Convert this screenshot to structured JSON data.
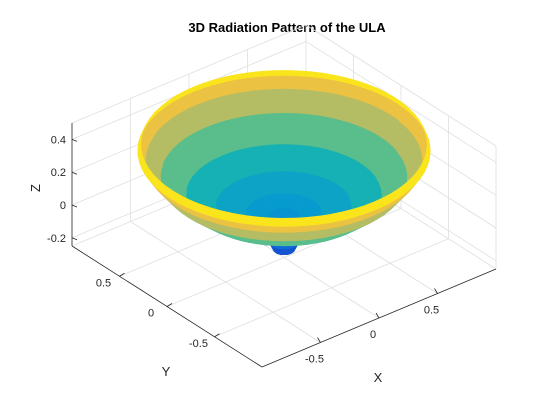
{
  "chart_data": {
    "type": "surface",
    "title": "3D Radiation Pattern of the ULA",
    "xlabel": "X",
    "ylabel": "Y",
    "zlabel": "Z",
    "xticks": [
      -0.5,
      0,
      0.5
    ],
    "yticks": [
      -0.5,
      0,
      0.5
    ],
    "zticks": [
      -0.2,
      0,
      0.2,
      0.4
    ],
    "xlim": [
      -1,
      1
    ],
    "ylim": [
      -1,
      1
    ],
    "zlim": [
      -0.25,
      0.5
    ],
    "grid": true,
    "colormap": "parula",
    "surface_profile": [
      {
        "r": 0.0,
        "z": -0.18
      },
      {
        "r": 0.07,
        "z": -0.2
      },
      {
        "r": 0.1,
        "z": -0.15
      },
      {
        "r": 0.06,
        "z": -0.1
      },
      {
        "r": 0.05,
        "z": -0.07
      },
      {
        "r": 0.09,
        "z": -0.05
      },
      {
        "r": 0.0,
        "z": -0.03
      },
      {
        "r": 0.1,
        "z": 0.0
      },
      {
        "r": 0.25,
        "z": 0.02
      },
      {
        "r": 0.45,
        "z": 0.06
      },
      {
        "r": 0.65,
        "z": 0.13
      },
      {
        "r": 0.82,
        "z": 0.24
      },
      {
        "r": 0.92,
        "z": 0.34
      },
      {
        "r": 0.97,
        "z": 0.4
      },
      {
        "r": 0.95,
        "z": 0.44
      }
    ]
  }
}
